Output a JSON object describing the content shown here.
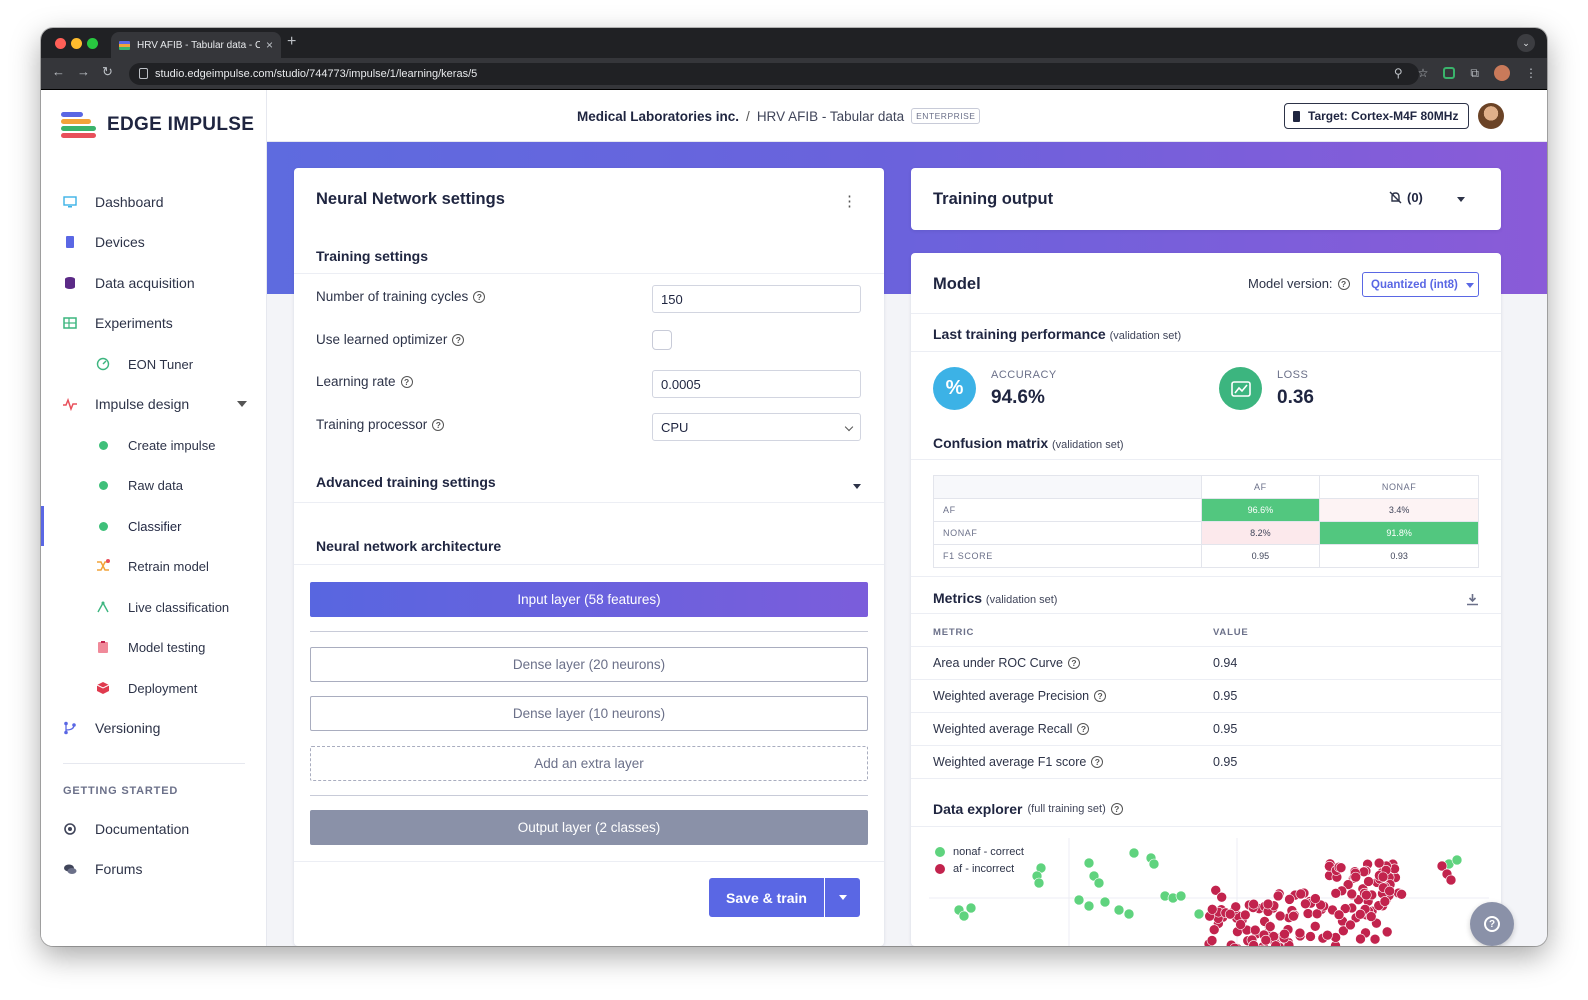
{
  "browser": {
    "tab_title": "HRV AFIB - Tabular data - Cla",
    "close_tab": "×",
    "new_tab": "+",
    "url": "studio.edgeimpulse.com/studio/744773/impulse/1/learning/keras/5"
  },
  "brand": {
    "name": "EDGE IMPULSE"
  },
  "sidebar": {
    "items": [
      {
        "label": "Dashboard",
        "icon": "monitor-icon"
      },
      {
        "label": "Devices",
        "icon": "chip-icon"
      },
      {
        "label": "Data acquisition",
        "icon": "database-icon"
      },
      {
        "label": "Experiments",
        "icon": "table-icon"
      },
      {
        "label": "EON Tuner",
        "icon": "gauge-icon"
      },
      {
        "label": "Impulse design",
        "icon": "pulse-icon"
      },
      {
        "label": "Create impulse"
      },
      {
        "label": "Raw data"
      },
      {
        "label": "Classifier"
      },
      {
        "label": "Retrain model",
        "icon": "shuffle-icon"
      },
      {
        "label": "Live classification",
        "icon": "antenna-icon"
      },
      {
        "label": "Model testing",
        "icon": "clipboard-icon"
      },
      {
        "label": "Deployment",
        "icon": "cube-icon"
      },
      {
        "label": "Versioning",
        "icon": "branch-icon"
      }
    ],
    "section_heading": "GETTING STARTED",
    "bottom_items": [
      {
        "label": "Documentation",
        "icon": "book-icon"
      },
      {
        "label": "Forums",
        "icon": "chat-icon"
      }
    ]
  },
  "header": {
    "org": "Medical Laboratories inc.",
    "separator": "/",
    "project": "HRV AFIB - Tabular data",
    "badge": "ENTERPRISE",
    "target": "Target: Cortex-M4F 80MHz"
  },
  "nn": {
    "title": "Neural Network settings",
    "training_settings": "Training settings",
    "cycles_label": "Number of training cycles",
    "cycles_value": "150",
    "optimizer_label": "Use learned optimizer",
    "lr_label": "Learning rate",
    "lr_value": "0.0005",
    "processor_label": "Training processor",
    "processor_value": "CPU",
    "advanced": "Advanced training settings",
    "arch": "Neural network architecture",
    "layers": {
      "input": "Input layer (58 features)",
      "dense1": "Dense layer (20 neurons)",
      "dense2": "Dense layer (10 neurons)",
      "add": "Add an extra layer",
      "output": "Output layer (2 classes)"
    },
    "save": "Save & train"
  },
  "training_output": {
    "title": "Training output",
    "notif_count": "(0)"
  },
  "model": {
    "title": "Model",
    "version_label": "Model version:",
    "version_value": "Quantized (int8)",
    "perf_title": "Last training performance",
    "perf_sub": "(validation set)",
    "accuracy_label": "ACCURACY",
    "accuracy_value": "94.6%",
    "accuracy_symbol": "%",
    "loss_label": "LOSS",
    "loss_value": "0.36",
    "cm_title": "Confusion matrix",
    "cm_sub": "(validation set)",
    "cm": {
      "cols": [
        "AF",
        "NONAF"
      ],
      "rows": [
        {
          "label": "AF",
          "values": [
            "96.6%",
            "3.4%"
          ]
        },
        {
          "label": "NONAF",
          "values": [
            "8.2%",
            "91.8%"
          ]
        },
        {
          "label": "F1 SCORE",
          "values": [
            "0.95",
            "0.93"
          ]
        }
      ]
    },
    "metrics_title": "Metrics",
    "metrics_sub": "(validation set)",
    "metrics_cols": [
      "METRIC",
      "VALUE"
    ],
    "metrics": [
      {
        "name": "Area under ROC Curve",
        "value": "0.94"
      },
      {
        "name": "Weighted average Precision",
        "value": "0.95"
      },
      {
        "name": "Weighted average Recall",
        "value": "0.95"
      },
      {
        "name": "Weighted average F1 score",
        "value": "0.95"
      }
    ],
    "explorer_title": "Data explorer",
    "explorer_sub": "(full training set)",
    "legend": [
      {
        "label": "nonaf - correct",
        "color": "#5fd37e"
      },
      {
        "label": "af - incorrect",
        "color": "#c2234d"
      }
    ]
  },
  "colors": {
    "accent": "#5a67e4",
    "green": "#3fc07a",
    "cm_good": "#52c77f",
    "cm_bad": "#fce9ec",
    "accuracy": "#3cb2e6",
    "loss": "#3cb57f"
  }
}
